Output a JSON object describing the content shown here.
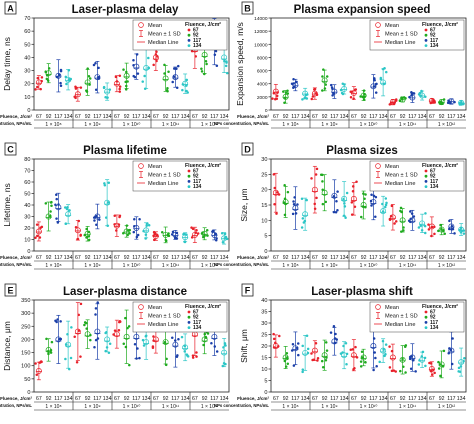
{
  "legend_title": "Fluence, J/cm²",
  "legend_stats": [
    "Mean",
    "Mean ± 1 SD",
    "Median Line"
  ],
  "fluence_values": [
    "67",
    "92",
    "117",
    "134"
  ],
  "fluence_colors": [
    "#e8202a",
    "#1faa1f",
    "#1b3fa8",
    "#2cc6c6"
  ],
  "row_label_fluence": "Fluence, J/cm²",
  "row_label_np": "NPs concentration, NPs/mL",
  "concentrations": [
    "1 × 10⁸",
    "1 × 10⁹",
    "1 × 10¹⁰",
    "1 × 10¹¹",
    "1 × 10¹²"
  ],
  "chart_data": [
    {
      "type": "scatter",
      "letter": "A",
      "title": "Laser-plasma delay",
      "ylabel": "Delay time, ns",
      "ylim": [
        0,
        70
      ],
      "yticks": [
        0,
        10,
        20,
        30,
        40,
        50,
        60,
        70
      ],
      "categories": [
        "1 × 10⁸",
        "1 × 10⁹",
        "1 × 10¹⁰",
        "1 × 10¹¹",
        "1 × 10¹²"
      ],
      "series": [
        {
          "name": "67",
          "mean": [
            21,
            12,
            20,
            40,
            46
          ]
        },
        {
          "name": "92",
          "mean": [
            28,
            21,
            26,
            24,
            42
          ]
        },
        {
          "name": "117",
          "mean": [
            26,
            25,
            33,
            25,
            52
          ]
        },
        {
          "name": "134",
          "mean": [
            23,
            14,
            32,
            20,
            40
          ]
        }
      ]
    },
    {
      "type": "scatter",
      "letter": "B",
      "title": "Plasma expansion speed",
      "ylabel": "Expansion speed, m/s",
      "ylim": [
        0,
        14000
      ],
      "yticks": [
        0,
        2000,
        4000,
        6000,
        8000,
        10000,
        12000,
        14000
      ],
      "categories": [
        "1 × 10⁸",
        "1 × 10⁹",
        "1 × 10¹⁰",
        "1 × 10¹¹",
        "1 × 10¹²"
      ],
      "series": [
        {
          "name": "67",
          "mean": [
            2800,
            2500,
            2600,
            1200,
            1400
          ]
        },
        {
          "name": "92",
          "mean": [
            2000,
            4500,
            2200,
            1600,
            1200
          ]
        },
        {
          "name": "117",
          "mean": [
            3800,
            2800,
            3600,
            1900,
            1300
          ]
        },
        {
          "name": "134",
          "mean": [
            2500,
            3200,
            4200,
            2200,
            1100
          ]
        }
      ]
    },
    {
      "type": "scatter",
      "letter": "C",
      "title": "Plasma lifetime",
      "ylabel": "Lifetime, ns",
      "ylim": [
        0,
        80
      ],
      "yticks": [
        0,
        10,
        20,
        30,
        40,
        50,
        60,
        70,
        80
      ],
      "categories": [
        "1 × 10⁸",
        "1 × 10⁹",
        "1 × 10¹⁰",
        "1 × 10¹¹",
        "1 × 10¹²"
      ],
      "series": [
        {
          "name": "67",
          "mean": [
            17,
            18,
            22,
            13,
            14
          ]
        },
        {
          "name": "92",
          "mean": [
            30,
            15,
            17,
            14,
            15
          ]
        },
        {
          "name": "117",
          "mean": [
            38,
            30,
            20,
            14,
            14
          ]
        },
        {
          "name": "134",
          "mean": [
            32,
            42,
            18,
            12,
            11
          ]
        }
      ]
    },
    {
      "type": "scatter",
      "letter": "D",
      "title": "Plasma sizes",
      "ylabel": "Size, μm",
      "ylim": [
        0,
        30
      ],
      "yticks": [
        0,
        5,
        10,
        15,
        20,
        25,
        30
      ],
      "categories": [
        "1 × 10⁸",
        "1 × 10⁹",
        "1 × 10¹⁰",
        "1 × 10¹¹",
        "1 × 10¹²"
      ],
      "series": [
        {
          "name": "67",
          "mean": [
            19,
            20,
            17,
            11,
            8
          ]
        },
        {
          "name": "92",
          "mean": [
            16,
            19,
            15,
            10,
            7
          ]
        },
        {
          "name": "117",
          "mean": [
            14,
            18,
            16,
            10,
            8
          ]
        },
        {
          "name": "134",
          "mean": [
            12,
            17,
            13,
            9,
            7
          ]
        }
      ]
    },
    {
      "type": "scatter",
      "letter": "E",
      "title": "Laser-plasma distance",
      "ylabel": "Distance, μm",
      "ylim": [
        0,
        350
      ],
      "yticks": [
        0,
        50,
        100,
        150,
        200,
        250,
        300,
        350
      ],
      "categories": [
        "1 × 10⁸",
        "1 × 10⁹",
        "1 × 10¹⁰",
        "1 × 10¹¹",
        "1 × 10¹²"
      ],
      "series": [
        {
          "name": "67",
          "mean": [
            80,
            230,
            220,
            200,
            220
          ]
        },
        {
          "name": "92",
          "mean": [
            160,
            220,
            210,
            190,
            200
          ]
        },
        {
          "name": "117",
          "mean": [
            200,
            230,
            210,
            180,
            210
          ]
        },
        {
          "name": "134",
          "mean": [
            180,
            200,
            190,
            170,
            150
          ]
        }
      ]
    },
    {
      "type": "scatter",
      "letter": "F",
      "title": "Laser-plasma shift",
      "ylabel": "Shift, μm",
      "ylim": [
        0,
        40
      ],
      "yticks": [
        0,
        5,
        10,
        15,
        20,
        25,
        30,
        35,
        40
      ],
      "categories": [
        "1 × 10⁸",
        "1 × 10⁹",
        "1 × 10¹⁰",
        "1 × 10¹¹",
        "1 × 10¹²"
      ],
      "series": [
        {
          "name": "67",
          "mean": [
            20,
            18,
            16,
            15,
            10
          ]
        },
        {
          "name": "92",
          "mean": [
            15,
            16,
            15,
            14,
            12
          ]
        },
        {
          "name": "117",
          "mean": [
            19,
            22,
            20,
            15,
            18
          ]
        },
        {
          "name": "134",
          "mean": [
            17,
            16,
            18,
            14,
            13
          ]
        }
      ]
    }
  ]
}
